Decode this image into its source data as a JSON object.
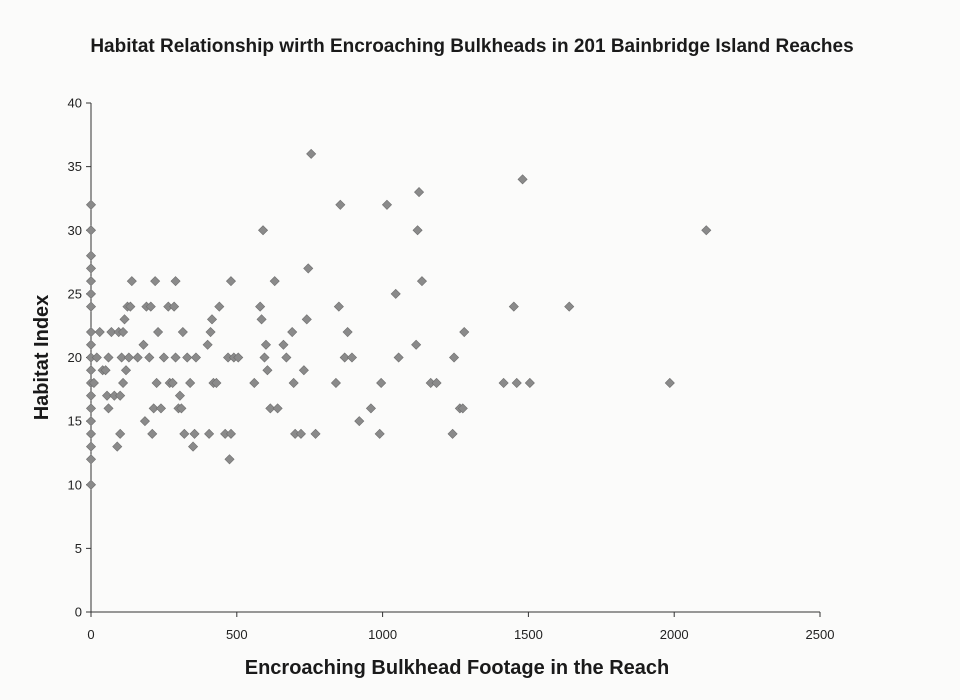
{
  "chart_data": {
    "type": "scatter",
    "title": "Habitat Relationship wirth Encroaching Bulkheads in 201 Bainbridge Island Reaches",
    "xlabel": "Encroaching Bulkhead Footage in the Reach",
    "ylabel": "Habitat Index",
    "xlim": [
      0,
      2500
    ],
    "ylim": [
      0,
      40
    ],
    "xticks": [
      0,
      500,
      1000,
      1500,
      2000,
      2500
    ],
    "yticks": [
      0,
      5,
      10,
      15,
      20,
      25,
      30,
      35,
      40
    ],
    "grid": false,
    "marker": "diamond",
    "marker_color": "#8a8a8a",
    "points": [
      [
        0,
        10
      ],
      [
        0,
        12
      ],
      [
        0,
        13
      ],
      [
        0,
        14
      ],
      [
        0,
        15
      ],
      [
        0,
        16
      ],
      [
        0,
        17
      ],
      [
        0,
        18
      ],
      [
        0,
        19
      ],
      [
        0,
        20
      ],
      [
        0,
        21
      ],
      [
        0,
        22
      ],
      [
        0,
        24
      ],
      [
        0,
        25
      ],
      [
        0,
        26
      ],
      [
        0,
        27
      ],
      [
        0,
        28
      ],
      [
        0,
        30
      ],
      [
        0,
        32
      ],
      [
        10,
        18
      ],
      [
        20,
        20
      ],
      [
        30,
        22
      ],
      [
        40,
        19
      ],
      [
        50,
        19
      ],
      [
        55,
        17
      ],
      [
        60,
        16
      ],
      [
        60,
        20
      ],
      [
        70,
        22
      ],
      [
        80,
        17
      ],
      [
        90,
        13
      ],
      [
        95,
        22
      ],
      [
        100,
        14
      ],
      [
        100,
        17
      ],
      [
        105,
        20
      ],
      [
        110,
        18
      ],
      [
        110,
        22
      ],
      [
        115,
        23
      ],
      [
        120,
        19
      ],
      [
        125,
        24
      ],
      [
        130,
        20
      ],
      [
        135,
        24
      ],
      [
        140,
        26
      ],
      [
        160,
        20
      ],
      [
        180,
        21
      ],
      [
        185,
        15
      ],
      [
        190,
        24
      ],
      [
        200,
        20
      ],
      [
        205,
        24
      ],
      [
        210,
        14
      ],
      [
        215,
        16
      ],
      [
        220,
        26
      ],
      [
        225,
        18
      ],
      [
        230,
        22
      ],
      [
        240,
        16
      ],
      [
        250,
        20
      ],
      [
        265,
        24
      ],
      [
        270,
        18
      ],
      [
        280,
        18
      ],
      [
        285,
        24
      ],
      [
        290,
        20
      ],
      [
        290,
        26
      ],
      [
        300,
        16
      ],
      [
        305,
        17
      ],
      [
        310,
        16
      ],
      [
        315,
        22
      ],
      [
        320,
        14
      ],
      [
        330,
        20
      ],
      [
        340,
        18
      ],
      [
        350,
        13
      ],
      [
        355,
        14
      ],
      [
        360,
        20
      ],
      [
        400,
        21
      ],
      [
        405,
        14
      ],
      [
        410,
        22
      ],
      [
        415,
        23
      ],
      [
        420,
        18
      ],
      [
        430,
        18
      ],
      [
        440,
        24
      ],
      [
        460,
        14
      ],
      [
        470,
        20
      ],
      [
        475,
        12
      ],
      [
        480,
        14
      ],
      [
        480,
        26
      ],
      [
        490,
        20
      ],
      [
        505,
        20
      ],
      [
        560,
        18
      ],
      [
        580,
        24
      ],
      [
        585,
        23
      ],
      [
        590,
        30
      ],
      [
        595,
        20
      ],
      [
        600,
        21
      ],
      [
        605,
        19
      ],
      [
        615,
        16
      ],
      [
        630,
        26
      ],
      [
        640,
        16
      ],
      [
        660,
        21
      ],
      [
        670,
        20
      ],
      [
        690,
        22
      ],
      [
        695,
        18
      ],
      [
        700,
        14
      ],
      [
        720,
        14
      ],
      [
        730,
        19
      ],
      [
        740,
        23
      ],
      [
        745,
        27
      ],
      [
        755,
        36
      ],
      [
        770,
        14
      ],
      [
        840,
        18
      ],
      [
        850,
        24
      ],
      [
        855,
        32
      ],
      [
        870,
        20
      ],
      [
        880,
        22
      ],
      [
        895,
        20
      ],
      [
        920,
        15
      ],
      [
        960,
        16
      ],
      [
        990,
        14
      ],
      [
        995,
        18
      ],
      [
        1015,
        32
      ],
      [
        1045,
        25
      ],
      [
        1055,
        20
      ],
      [
        1115,
        21
      ],
      [
        1120,
        30
      ],
      [
        1125,
        33
      ],
      [
        1135,
        26
      ],
      [
        1165,
        18
      ],
      [
        1185,
        18
      ],
      [
        1240,
        14
      ],
      [
        1245,
        20
      ],
      [
        1265,
        16
      ],
      [
        1275,
        16
      ],
      [
        1280,
        22
      ],
      [
        1415,
        18
      ],
      [
        1450,
        24
      ],
      [
        1460,
        18
      ],
      [
        1480,
        34
      ],
      [
        1505,
        18
      ],
      [
        1640,
        24
      ],
      [
        1985,
        18
      ],
      [
        2110,
        30
      ]
    ]
  }
}
